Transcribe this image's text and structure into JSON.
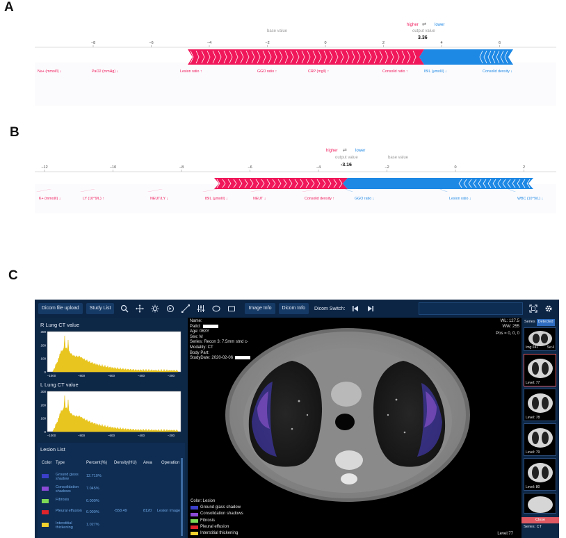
{
  "panels": {
    "a": "A",
    "b": "B",
    "c": "C"
  },
  "plot_a": {
    "higher": "higher",
    "lower": "lower",
    "arrows": "⇄",
    "output_label": "output value",
    "base_label": "base value",
    "output_value": "3.36",
    "ticks": [
      "−8",
      "−6",
      "−4",
      "−2",
      "0",
      "2",
      "4",
      "6"
    ],
    "features_red": [
      "Na+ (mmol/l) ↓",
      "PaO2 (mmHg) ↓",
      "Lesion ratio ↑",
      "GGO ratio ↑",
      "CRP (mg/l) ↑",
      "Consolid ratio ↑"
    ],
    "features_blue": [
      "IBIL (μmol/l) ↓",
      "Consolid density ↓"
    ],
    "colors": {
      "red": "#f0185a",
      "blue": "#1e88e5"
    }
  },
  "plot_b": {
    "higher": "higher",
    "lower": "lower",
    "arrows": "⇄",
    "output_label": "output value",
    "base_label": "base value",
    "output_value": "-3.16",
    "ticks": [
      "−12",
      "−10",
      "−8",
      "−6",
      "−4",
      "−2",
      "0",
      "2"
    ],
    "features_red": [
      "K+ (mmol/l) ↓",
      "LY (10^9/L) ↑",
      "NEUT/LY ↓",
      "IBIL (μmol/l) ↓",
      "NEUT ↓",
      "Consolid density ↑"
    ],
    "features_blue": [
      "GGO ratio ↓",
      "Lesion ratio ↓",
      "WBC (10^9/L) ↓"
    ]
  },
  "toolbar": {
    "upload": "Dicom file upload",
    "study_list": "Study List",
    "image_info": "Image Info",
    "dicom_info": "Dicom Info",
    "dicom_switch": "Dicom Switch:"
  },
  "charts": {
    "r_title": "R Lung CT value",
    "l_title": "L Lung CT value",
    "r_yticks": [
      "300",
      "200",
      "100",
      "0"
    ],
    "r_xticks": [
      "−1000",
      "−800",
      "−600",
      "−400",
      "−200"
    ],
    "l_yticks": [
      "300",
      "200",
      "100",
      "0"
    ],
    "l_xticks": [
      "−1000",
      "−800",
      "−600",
      "−400",
      "−200"
    ],
    "hist_color": "#e8c51f"
  },
  "lesion": {
    "title": "Lesion List",
    "headers": [
      "Color",
      "Type",
      "Percent(%)",
      "Density(HU)",
      "Area",
      "Operation"
    ],
    "rows": [
      {
        "type": "Ground glass shadow",
        "percent": "12.710%",
        "color": "#3b3fc9"
      },
      {
        "type": "Consolidation shadows",
        "percent": "7.045%",
        "color": "#8b4bd6"
      },
      {
        "type": "Fibrosis",
        "percent": "0.000%",
        "color": "#7ed957"
      },
      {
        "type": "Pleural effusion",
        "percent": "0.000%",
        "color": "#e0242b"
      },
      {
        "type": "Interstitial thickening",
        "percent": "1.027%",
        "color": "#f2d12e"
      }
    ],
    "density": "-558.49",
    "area": "8120",
    "operation": "Lesion Image"
  },
  "viewer": {
    "name_label": "Name:",
    "patid_label": "PatId:",
    "age": "Age: 063Y",
    "sex": "Sex: M",
    "series": "Series: Recon 3: 7.5mm stnd c-",
    "modality": "Modality: CT",
    "body_part": "Body Part:",
    "study_date": "StudyDate: 2020-02-06",
    "wl": "WL: 127.5",
    "ww": "WW: 255",
    "pos": "Pos = 0, 0, 0",
    "level": "Level:77",
    "legend_title": "Color: Lesion",
    "legend": [
      {
        "label": "Ground glass shadow",
        "color": "#3b3fc9"
      },
      {
        "label": "Consolidation shadows",
        "color": "#8b4bd6"
      },
      {
        "label": "Fibrosis",
        "color": "#7ed957"
      },
      {
        "label": "Pleural effusion",
        "color": "#e0242b"
      },
      {
        "label": "Interstitial thickening",
        "color": "#f2d12e"
      }
    ]
  },
  "series_panel": {
    "tab1": "Series",
    "tab2": "Detected",
    "img_label": "Img:241",
    "se_label": "Se:4",
    "levels": [
      "Level: 77",
      "Level: 78",
      "Level: 79",
      "Level: 80"
    ],
    "close": "Close",
    "series_ct": "Series: CT"
  }
}
